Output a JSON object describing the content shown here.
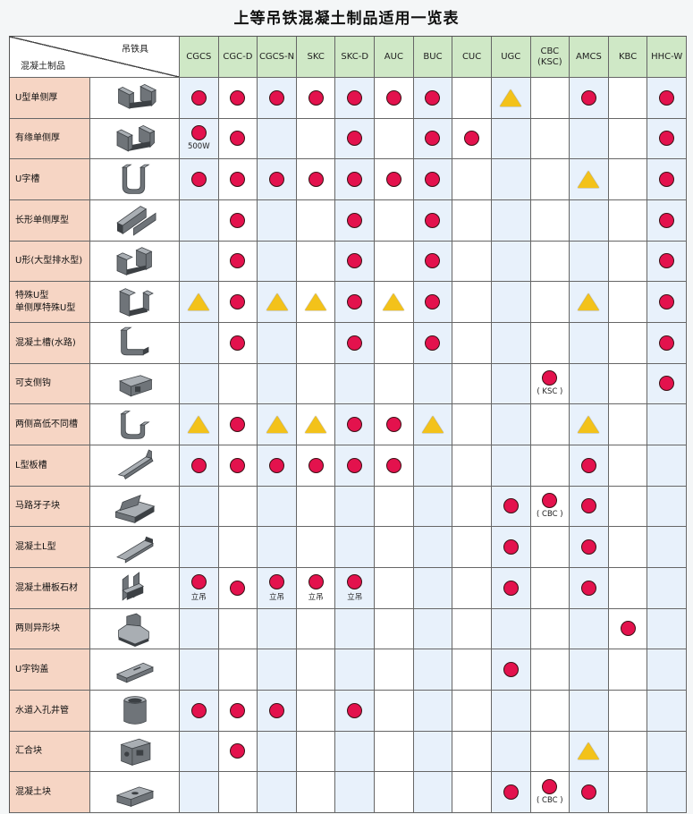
{
  "title": "上等吊铁混凝土制品适用一览表",
  "corner": {
    "column_header": "吊铁具",
    "row_header": "混凝土制品"
  },
  "columns": [
    {
      "label": "CGCS"
    },
    {
      "label": "CGC-D"
    },
    {
      "label": "CGCS-N"
    },
    {
      "label": "SKC"
    },
    {
      "label": "SKC-D"
    },
    {
      "label": "AUC"
    },
    {
      "label": "BUC"
    },
    {
      "label": "CUC"
    },
    {
      "label": "UGC"
    },
    {
      "label": "CBC",
      "sub": "(KSC)"
    },
    {
      "label": "AMCS"
    },
    {
      "label": "KBC"
    },
    {
      "label": "HHC-W"
    }
  ],
  "legend_marks": {
    "C": "circle",
    "T": "triangle",
    "": "none"
  },
  "mark_colors": {
    "circle": "#e3124d",
    "triangle": "#f3c21a"
  },
  "rows": [
    {
      "name": "U型单侧厚",
      "icon": "u-channel-double-icon",
      "cells": [
        {
          "m": "C"
        },
        {
          "m": "C"
        },
        {
          "m": "C"
        },
        {
          "m": "C"
        },
        {
          "m": "C"
        },
        {
          "m": "C"
        },
        {
          "m": "C"
        },
        {
          "m": ""
        },
        {
          "m": "T"
        },
        {
          "m": ""
        },
        {
          "m": "C"
        },
        {
          "m": ""
        },
        {
          "m": "C"
        }
      ]
    },
    {
      "name": "有缘单侧厚",
      "icon": "u-channel-rim-icon",
      "cells": [
        {
          "m": "C",
          "note": "500W"
        },
        {
          "m": "C"
        },
        {
          "m": ""
        },
        {
          "m": ""
        },
        {
          "m": "C"
        },
        {
          "m": ""
        },
        {
          "m": "C"
        },
        {
          "m": "C"
        },
        {
          "m": ""
        },
        {
          "m": ""
        },
        {
          "m": ""
        },
        {
          "m": ""
        },
        {
          "m": "C"
        }
      ]
    },
    {
      "name": "U字槽",
      "icon": "u-trough-icon",
      "cells": [
        {
          "m": "C"
        },
        {
          "m": "C"
        },
        {
          "m": "C"
        },
        {
          "m": "C"
        },
        {
          "m": "C"
        },
        {
          "m": "C"
        },
        {
          "m": "C"
        },
        {
          "m": ""
        },
        {
          "m": ""
        },
        {
          "m": ""
        },
        {
          "m": "T"
        },
        {
          "m": ""
        },
        {
          "m": "C"
        }
      ]
    },
    {
      "name": "长形单侧厚型",
      "icon": "long-channel-icon",
      "cells": [
        {
          "m": ""
        },
        {
          "m": "C"
        },
        {
          "m": ""
        },
        {
          "m": ""
        },
        {
          "m": "C"
        },
        {
          "m": ""
        },
        {
          "m": "C"
        },
        {
          "m": ""
        },
        {
          "m": ""
        },
        {
          "m": ""
        },
        {
          "m": ""
        },
        {
          "m": ""
        },
        {
          "m": "C"
        }
      ]
    },
    {
      "name": "U形(大型排水型)",
      "icon": "large-drain-channel-icon",
      "cells": [
        {
          "m": ""
        },
        {
          "m": "C"
        },
        {
          "m": ""
        },
        {
          "m": ""
        },
        {
          "m": "C"
        },
        {
          "m": ""
        },
        {
          "m": "C"
        },
        {
          "m": ""
        },
        {
          "m": ""
        },
        {
          "m": ""
        },
        {
          "m": ""
        },
        {
          "m": ""
        },
        {
          "m": "C"
        }
      ]
    },
    {
      "name": "特殊U型",
      "name2": "单侧厚特殊U型",
      "icon": "special-u-channel-icon",
      "cells": [
        {
          "m": "T"
        },
        {
          "m": "C"
        },
        {
          "m": "T"
        },
        {
          "m": "T"
        },
        {
          "m": "C"
        },
        {
          "m": "T"
        },
        {
          "m": "C"
        },
        {
          "m": ""
        },
        {
          "m": ""
        },
        {
          "m": ""
        },
        {
          "m": "T"
        },
        {
          "m": ""
        },
        {
          "m": "C"
        }
      ]
    },
    {
      "name": "混凝土槽(水路)",
      "icon": "concrete-waterway-icon",
      "cells": [
        {
          "m": ""
        },
        {
          "m": "C"
        },
        {
          "m": ""
        },
        {
          "m": ""
        },
        {
          "m": "C"
        },
        {
          "m": ""
        },
        {
          "m": "C"
        },
        {
          "m": ""
        },
        {
          "m": ""
        },
        {
          "m": ""
        },
        {
          "m": ""
        },
        {
          "m": ""
        },
        {
          "m": "C"
        }
      ]
    },
    {
      "name": "可支侧钩",
      "icon": "side-hook-block-icon",
      "cells": [
        {
          "m": ""
        },
        {
          "m": ""
        },
        {
          "m": ""
        },
        {
          "m": ""
        },
        {
          "m": ""
        },
        {
          "m": ""
        },
        {
          "m": ""
        },
        {
          "m": ""
        },
        {
          "m": ""
        },
        {
          "m": "C",
          "note": "( KSC )"
        },
        {
          "m": ""
        },
        {
          "m": ""
        },
        {
          "m": "C"
        }
      ]
    },
    {
      "name": "两侧高低不同槽",
      "icon": "uneven-channel-icon",
      "cells": [
        {
          "m": "T"
        },
        {
          "m": "C"
        },
        {
          "m": "T"
        },
        {
          "m": "T"
        },
        {
          "m": "C"
        },
        {
          "m": "C"
        },
        {
          "m": "T"
        },
        {
          "m": ""
        },
        {
          "m": ""
        },
        {
          "m": ""
        },
        {
          "m": "T"
        },
        {
          "m": ""
        },
        {
          "m": ""
        }
      ]
    },
    {
      "name": "L型板槽",
      "icon": "l-plate-channel-icon",
      "cells": [
        {
          "m": "C"
        },
        {
          "m": "C"
        },
        {
          "m": "C"
        },
        {
          "m": "C"
        },
        {
          "m": "C"
        },
        {
          "m": "C"
        },
        {
          "m": ""
        },
        {
          "m": ""
        },
        {
          "m": ""
        },
        {
          "m": ""
        },
        {
          "m": "C"
        },
        {
          "m": ""
        },
        {
          "m": ""
        }
      ]
    },
    {
      "name": "马路牙子块",
      "icon": "curb-stone-icon",
      "cells": [
        {
          "m": ""
        },
        {
          "m": ""
        },
        {
          "m": ""
        },
        {
          "m": ""
        },
        {
          "m": ""
        },
        {
          "m": ""
        },
        {
          "m": ""
        },
        {
          "m": ""
        },
        {
          "m": "C"
        },
        {
          "m": "C",
          "note": "( CBC )"
        },
        {
          "m": "C"
        },
        {
          "m": ""
        },
        {
          "m": ""
        }
      ]
    },
    {
      "name": "混凝土L型",
      "icon": "concrete-l-block-icon",
      "cells": [
        {
          "m": ""
        },
        {
          "m": ""
        },
        {
          "m": ""
        },
        {
          "m": ""
        },
        {
          "m": ""
        },
        {
          "m": ""
        },
        {
          "m": ""
        },
        {
          "m": ""
        },
        {
          "m": "C"
        },
        {
          "m": ""
        },
        {
          "m": "C"
        },
        {
          "m": ""
        },
        {
          "m": ""
        }
      ]
    },
    {
      "name": "混凝土栅板石材",
      "icon": "concrete-fence-slab-icon",
      "cells": [
        {
          "m": "C",
          "note": "立吊"
        },
        {
          "m": "C"
        },
        {
          "m": "C",
          "note": "立吊"
        },
        {
          "m": "C",
          "note": "立吊"
        },
        {
          "m": "C",
          "note": "立吊"
        },
        {
          "m": ""
        },
        {
          "m": ""
        },
        {
          "m": ""
        },
        {
          "m": "C"
        },
        {
          "m": ""
        },
        {
          "m": "C"
        },
        {
          "m": ""
        },
        {
          "m": ""
        }
      ]
    },
    {
      "name": "两则异形块",
      "icon": "irregular-block-icon",
      "cells": [
        {
          "m": ""
        },
        {
          "m": ""
        },
        {
          "m": ""
        },
        {
          "m": ""
        },
        {
          "m": ""
        },
        {
          "m": ""
        },
        {
          "m": ""
        },
        {
          "m": ""
        },
        {
          "m": ""
        },
        {
          "m": ""
        },
        {
          "m": ""
        },
        {
          "m": "C"
        },
        {
          "m": ""
        }
      ]
    },
    {
      "name": "U字钩盖",
      "icon": "u-hook-cover-icon",
      "cells": [
        {
          "m": ""
        },
        {
          "m": ""
        },
        {
          "m": ""
        },
        {
          "m": ""
        },
        {
          "m": ""
        },
        {
          "m": ""
        },
        {
          "m": ""
        },
        {
          "m": ""
        },
        {
          "m": "C"
        },
        {
          "m": ""
        },
        {
          "m": ""
        },
        {
          "m": ""
        },
        {
          "m": ""
        }
      ]
    },
    {
      "name": "水道入孔井管",
      "icon": "manhole-pipe-icon",
      "cells": [
        {
          "m": "C"
        },
        {
          "m": "C"
        },
        {
          "m": "C"
        },
        {
          "m": ""
        },
        {
          "m": "C"
        },
        {
          "m": ""
        },
        {
          "m": ""
        },
        {
          "m": ""
        },
        {
          "m": ""
        },
        {
          "m": ""
        },
        {
          "m": ""
        },
        {
          "m": ""
        },
        {
          "m": ""
        }
      ]
    },
    {
      "name": "汇合块",
      "icon": "junction-box-icon",
      "cells": [
        {
          "m": ""
        },
        {
          "m": "C"
        },
        {
          "m": ""
        },
        {
          "m": ""
        },
        {
          "m": ""
        },
        {
          "m": ""
        },
        {
          "m": ""
        },
        {
          "m": ""
        },
        {
          "m": ""
        },
        {
          "m": ""
        },
        {
          "m": "T"
        },
        {
          "m": ""
        },
        {
          "m": ""
        }
      ]
    },
    {
      "name": "混凝土块",
      "icon": "concrete-block-icon",
      "cells": [
        {
          "m": ""
        },
        {
          "m": ""
        },
        {
          "m": ""
        },
        {
          "m": ""
        },
        {
          "m": ""
        },
        {
          "m": ""
        },
        {
          "m": ""
        },
        {
          "m": ""
        },
        {
          "m": "C"
        },
        {
          "m": "C",
          "note": "( CBC )"
        },
        {
          "m": "C"
        },
        {
          "m": ""
        },
        {
          "m": ""
        }
      ]
    }
  ]
}
